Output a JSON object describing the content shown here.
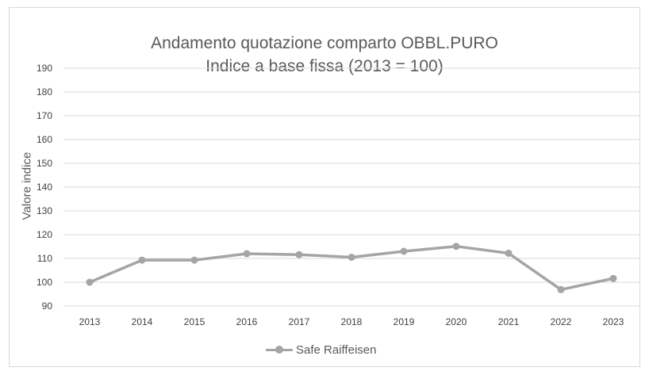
{
  "chart_data": {
    "type": "line",
    "title": "Andamento quotazione comparto OBBL.PURO",
    "subtitle": "Indice a base fissa (2013 = 100)",
    "xlabel": "",
    "ylabel": "Valore indice",
    "x": [
      "2013",
      "2014",
      "2015",
      "2016",
      "2017",
      "2018",
      "2019",
      "2020",
      "2021",
      "2022",
      "2023"
    ],
    "series": [
      {
        "name": "Safe Raiffeisen",
        "color": "#a5a5a5",
        "values": [
          100,
          109.3,
          109.3,
          112,
          111.6,
          110.5,
          113,
          115.1,
          112.2,
          96.9,
          101.6
        ]
      }
    ],
    "ylim": [
      90,
      190
    ],
    "yticks": [
      90,
      100,
      110,
      120,
      130,
      140,
      150,
      160,
      170,
      180,
      190
    ],
    "grid": true,
    "legend_position": "bottom"
  }
}
